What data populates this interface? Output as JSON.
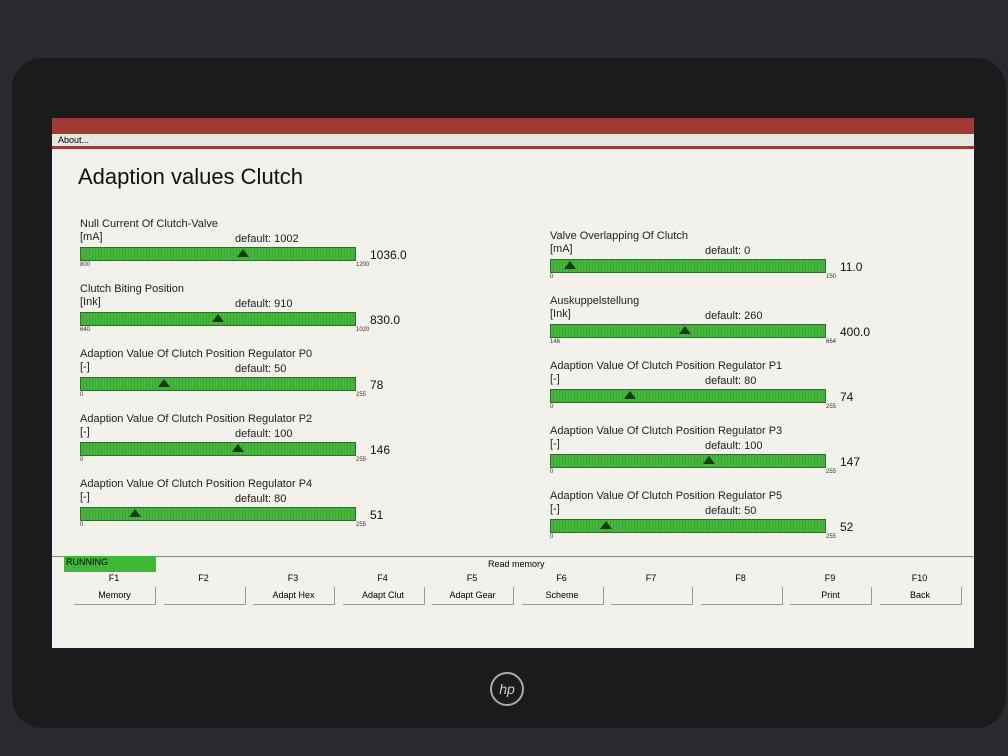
{
  "menu": [
    "About..."
  ],
  "title": "Adaption values Clutch",
  "gauges": [
    {
      "label": "Null Current Of Clutch-Valve",
      "unit": "[mA]",
      "default": "default: 1002",
      "min": 800,
      "max": 1200,
      "value": 1036,
      "value_label": "1036.0"
    },
    {
      "label": "Clutch Biting Position",
      "unit": "[Ink]",
      "default": "default: 910",
      "min": 640,
      "max": 1020,
      "value": 830,
      "value_label": "830.0"
    },
    {
      "label": "Adaption Value Of Clutch Position Regulator P0",
      "unit": "[-]",
      "default": "default: 50",
      "min": 0,
      "max": 255,
      "value": 78
    },
    {
      "label": "Adaption Value Of Clutch Position Regulator P2",
      "unit": "[-]",
      "default": "default: 100",
      "min": 0,
      "max": 255,
      "value": 146
    },
    {
      "label": "Adaption Value Of Clutch Position Regulator P4",
      "unit": "[-]",
      "default": "default: 80",
      "min": 0,
      "max": 255,
      "value": 51
    },
    {
      "label": "Valve Overlapping Of Clutch",
      "unit": "[mA]",
      "default": "default: 0",
      "min": 0,
      "max": 150,
      "value": 11,
      "value_label": "11.0"
    },
    {
      "label": "Auskuppelstellung",
      "unit": "[Ink]",
      "default": "default: 260",
      "min": 146,
      "max": 664,
      "value": 400,
      "value_label": "400.0"
    },
    {
      "label": "Adaption Value Of Clutch Position Regulator P1",
      "unit": "[-]",
      "default": "default: 80",
      "min": 0,
      "max": 255,
      "value": 74
    },
    {
      "label": "Adaption Value Of Clutch Position Regulator P3",
      "unit": "[-]",
      "default": "default: 100",
      "min": 0,
      "max": 255,
      "value": 147
    },
    {
      "label": "Adaption Value Of Clutch Position Regulator P5",
      "unit": "[-]",
      "default": "default: 50",
      "min": 0,
      "max": 255,
      "value": 52
    }
  ],
  "status": {
    "state": "RUNNING",
    "message": "Read memory"
  },
  "function_keys": [
    {
      "key": "F1",
      "label": "Memory"
    },
    {
      "key": "F2"
    },
    {
      "key": "F3",
      "label": "Adapt Hex"
    },
    {
      "key": "F4",
      "label": "Adapt Clut"
    },
    {
      "key": "F5",
      "label": "Adapt Gear"
    },
    {
      "key": "F6",
      "label": "Scheme"
    },
    {
      "key": "F7"
    },
    {
      "key": "F8"
    },
    {
      "key": "F9",
      "label": "Print"
    },
    {
      "key": "F10",
      "label": "Back"
    }
  ]
}
